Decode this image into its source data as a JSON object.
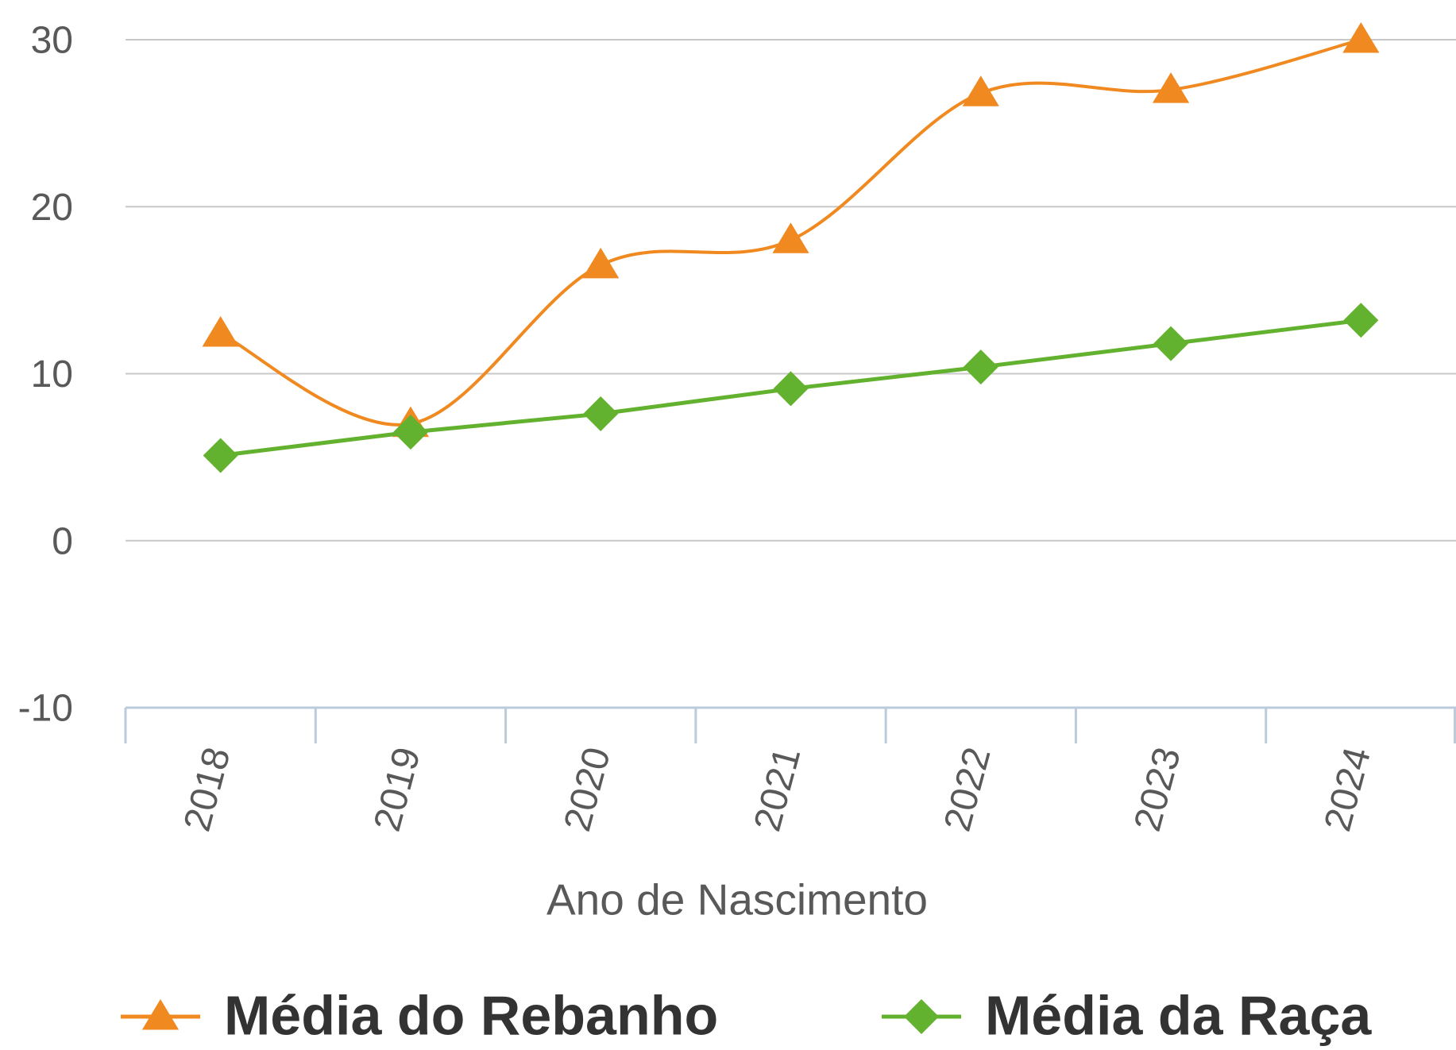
{
  "chart_data": {
    "type": "line",
    "x_label": "Ano de Nascimento",
    "categories": [
      "2018",
      "2019",
      "2020",
      "2021",
      "2022",
      "2023",
      "2024"
    ],
    "series": [
      {
        "name": "Média do Rebanho",
        "color": "#f0891f",
        "marker": "triangle",
        "smooth": true,
        "values": [
          12.4,
          7,
          16.5,
          18,
          26.8,
          27,
          30
        ]
      },
      {
        "name": "Média da Raça",
        "color": "#63b22f",
        "marker": "diamond",
        "smooth": false,
        "values": [
          5.1,
          6.5,
          7.6,
          9.1,
          10.4,
          11.8,
          13.2
        ]
      }
    ],
    "ylim": [
      -10,
      30
    ],
    "yticks": [
      -10,
      0,
      10,
      20,
      30
    ],
    "grid": true
  }
}
